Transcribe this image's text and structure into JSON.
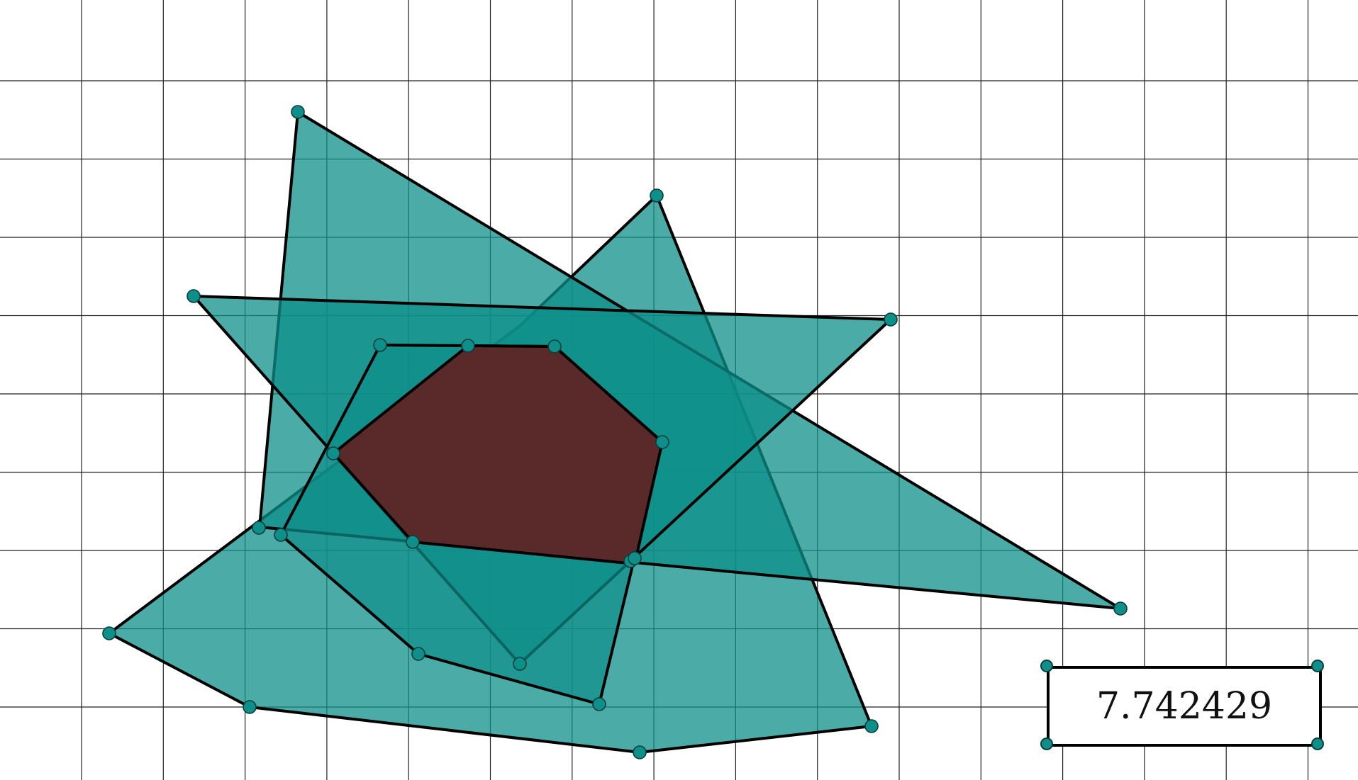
{
  "colors": {
    "grid": "#222222",
    "polygon_fill": "#0e8f8a",
    "polygon_stroke": "#000000",
    "intersection_fill": "#5a2a2a",
    "point_fill": "#0e8f8a",
    "point_stroke": "#0b3d3a",
    "background": "#ffffff"
  },
  "readout": {
    "value": "7.742429"
  },
  "diagram": {
    "grid": true,
    "shapes": [
      "shield-polygon",
      "wide-triangle",
      "tall-triangle",
      "hexagon",
      "intersection-polygon"
    ]
  }
}
